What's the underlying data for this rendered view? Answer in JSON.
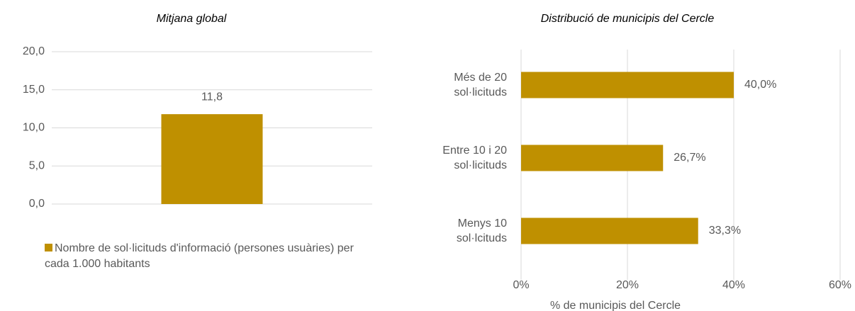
{
  "chart_data": [
    {
      "type": "bar",
      "title": "Mitjana global",
      "categories": [
        null
      ],
      "series": [
        {
          "name": "Nombre de sol·licituds d'informació (persones usuàries) per cada 1.000 habitants",
          "color": "#bf9000",
          "values": [
            11.8
          ],
          "value_labels": [
            "11,8"
          ]
        }
      ],
      "ylim": [
        0,
        20
      ],
      "yticks": [
        {
          "value": 0,
          "label": "0,0"
        },
        {
          "value": 5,
          "label": "5,0"
        },
        {
          "value": 10,
          "label": "10,0"
        },
        {
          "value": 15,
          "label": "15,0"
        },
        {
          "value": 20,
          "label": "20,0"
        }
      ],
      "grid": true,
      "legend": "bottom"
    },
    {
      "type": "barh",
      "title": "Distribució de municipis del Cercle",
      "categories": [
        "Més de 20\nsol·licituds",
        "Entre 10 i 20\nsol·licituds",
        "Menys 10\nsol·lcituds"
      ],
      "values": [
        40.0,
        26.7,
        33.3
      ],
      "value_labels": [
        "40,0%",
        "26,7%",
        "33,3%"
      ],
      "color": "#bf9000",
      "xlim": [
        0,
        60
      ],
      "xticks": [
        {
          "value": 0,
          "label": "0%"
        },
        {
          "value": 20,
          "label": "20%"
        },
        {
          "value": 40,
          "label": "40%"
        },
        {
          "value": 60,
          "label": "60%"
        }
      ],
      "xlabel": "% de  municipis del Cercle",
      "grid": true
    }
  ]
}
